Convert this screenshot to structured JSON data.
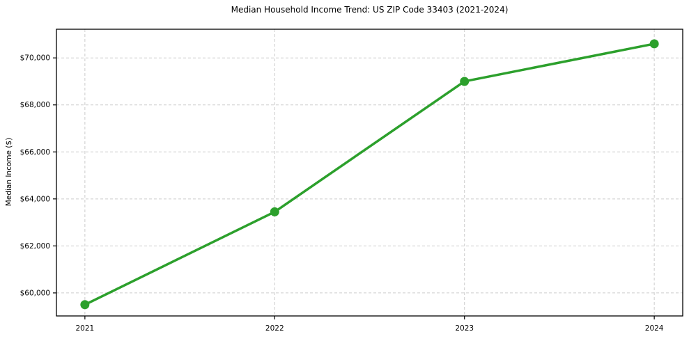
{
  "chart_data": {
    "type": "line",
    "title": "Median Household Income Trend: US ZIP Code 33403 (2021-2024)",
    "xlabel": "",
    "ylabel": "Median Income ($)",
    "x": [
      2021,
      2022,
      2023,
      2024
    ],
    "x_tick_labels": [
      "2021",
      "2022",
      "2023",
      "2024"
    ],
    "series": [
      {
        "name": "Median Household Income",
        "values": [
          59500,
          63450,
          69000,
          70600
        ]
      }
    ],
    "y_ticks": [
      60000,
      62000,
      64000,
      66000,
      68000,
      70000
    ],
    "y_tick_labels": [
      "$60,000",
      "$62,000",
      "$64,000",
      "$66,000",
      "$68,000",
      "$70,000"
    ],
    "xlim": [
      2020.85,
      2024.15
    ],
    "ylim": [
      59020,
      71220
    ],
    "grid": true,
    "grid_style": "dashed",
    "legend": false,
    "colors": {
      "line": "#2ca02c",
      "marker": "#2ca02c",
      "grid": "#cccccc",
      "spine": "#000000",
      "text": "#000000",
      "background": "#ffffff"
    }
  }
}
